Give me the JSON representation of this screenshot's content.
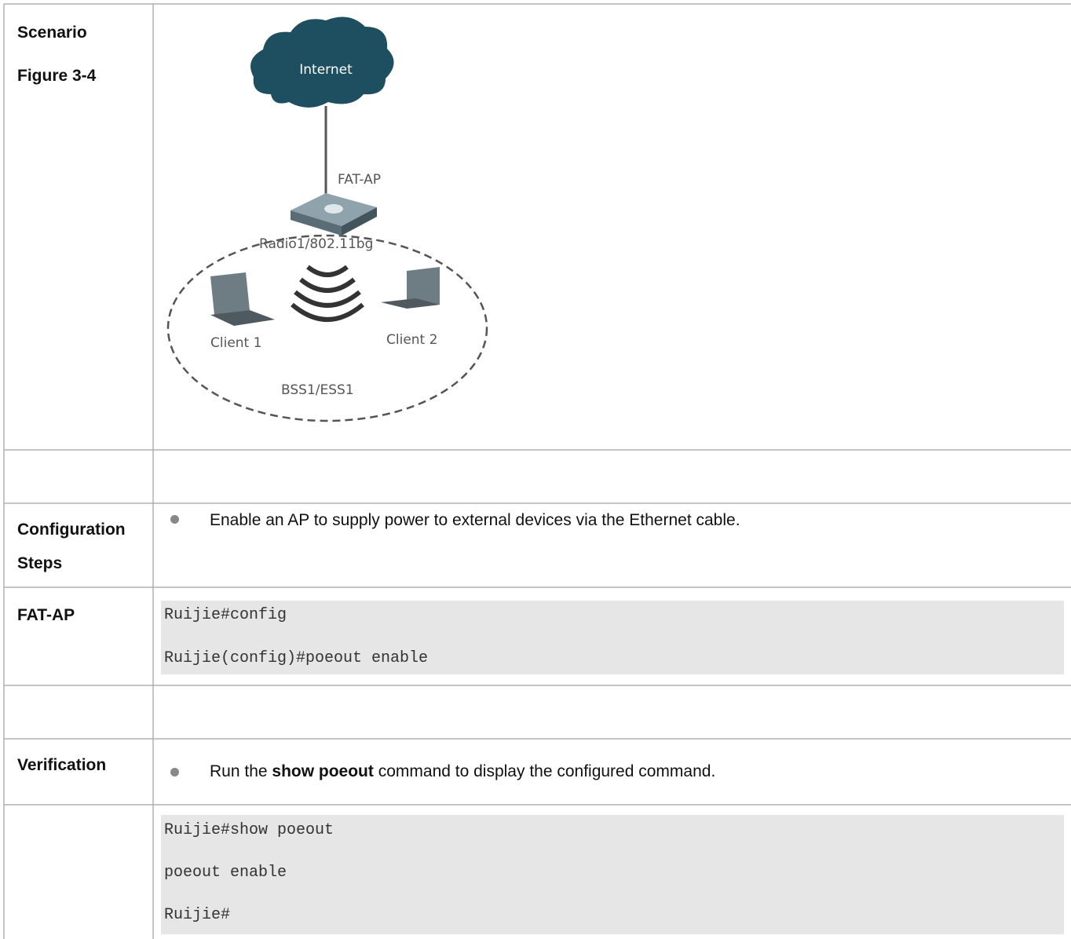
{
  "table": {
    "rows": [
      {
        "header": [
          "Scenario",
          "Figure 3-4"
        ],
        "figure": {
          "cloud": "Internet",
          "ap": "FAT-AP",
          "radio": "Radio1/802.11bg",
          "client1": "Client 1",
          "client2": "Client 2",
          "bss": "BSS1/ESS1"
        }
      },
      {
        "header": [
          "Configuration",
          "Steps"
        ],
        "bullet": [
          "Enable an AP to supply power to external devices via the Ethernet cable."
        ]
      },
      {
        "header": [
          "FAT-AP"
        ],
        "code": [
          "Ruijie#config",
          "Ruijie(config)#poeout enable"
        ]
      },
      {
        "header": [
          "Verification"
        ],
        "bullet": [
          "Run the ",
          "show poeout",
          " command to display the configured command."
        ]
      },
      {
        "code": [
          "Ruijie#show poeout",
          "poeout enable",
          "Ruijie#"
        ]
      }
    ]
  }
}
